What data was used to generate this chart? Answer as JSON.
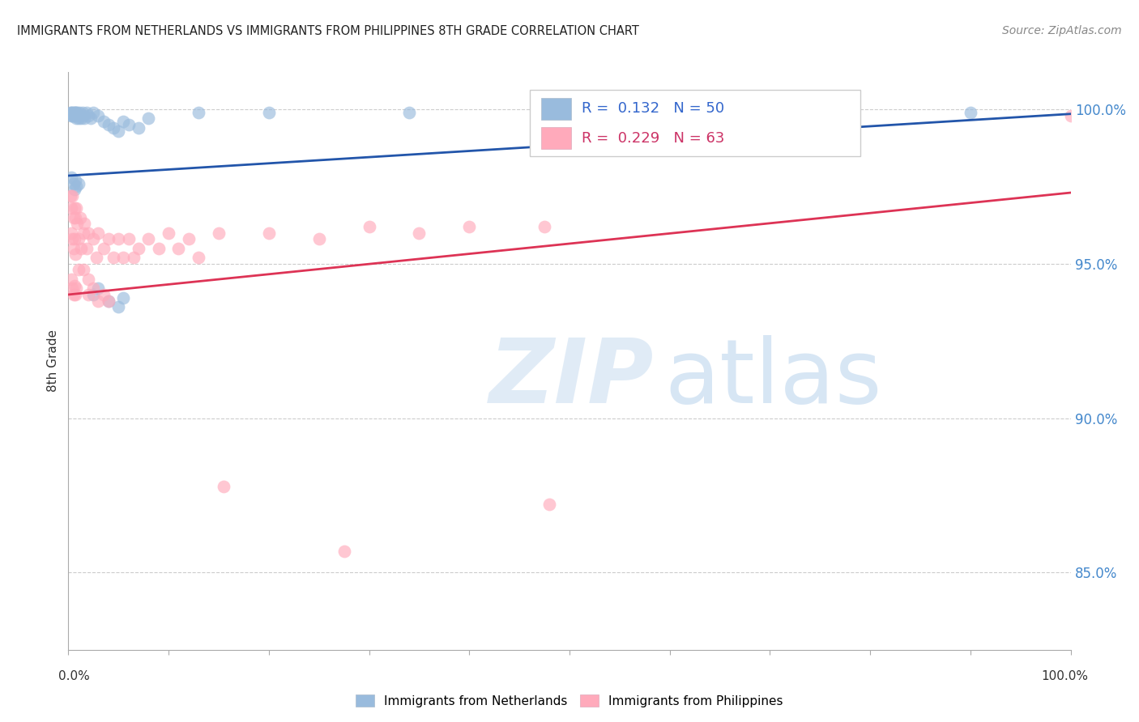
{
  "title": "IMMIGRANTS FROM NETHERLANDS VS IMMIGRANTS FROM PHILIPPINES 8TH GRADE CORRELATION CHART",
  "source": "Source: ZipAtlas.com",
  "ylabel": "8th Grade",
  "x_min": 0.0,
  "x_max": 1.0,
  "y_min": 0.825,
  "y_max": 1.012,
  "netherlands_R": 0.132,
  "netherlands_N": 50,
  "philippines_R": 0.229,
  "philippines_N": 63,
  "blue_scatter_color": "#99BBDD",
  "pink_scatter_color": "#FFAABB",
  "blue_line_color": "#2255AA",
  "pink_line_color": "#DD3355",
  "blue_label_color": "#3366CC",
  "pink_label_color": "#CC3366",
  "right_axis_color": "#4488CC",
  "y_ticks": [
    0.85,
    0.9,
    0.95,
    1.0
  ],
  "y_tick_labels": [
    "85.0%",
    "90.0%",
    "95.0%",
    "100.0%"
  ],
  "legend_label_netherlands": "Immigrants from Netherlands",
  "legend_label_philippines": "Immigrants from Philippines",
  "nl_trend_x0": 0.0,
  "nl_trend_y0": 0.9785,
  "nl_trend_x1": 1.0,
  "nl_trend_y1": 0.9985,
  "ph_trend_x0": 0.0,
  "ph_trend_y0": 0.94,
  "ph_trend_x1": 1.0,
  "ph_trend_y1": 0.973
}
